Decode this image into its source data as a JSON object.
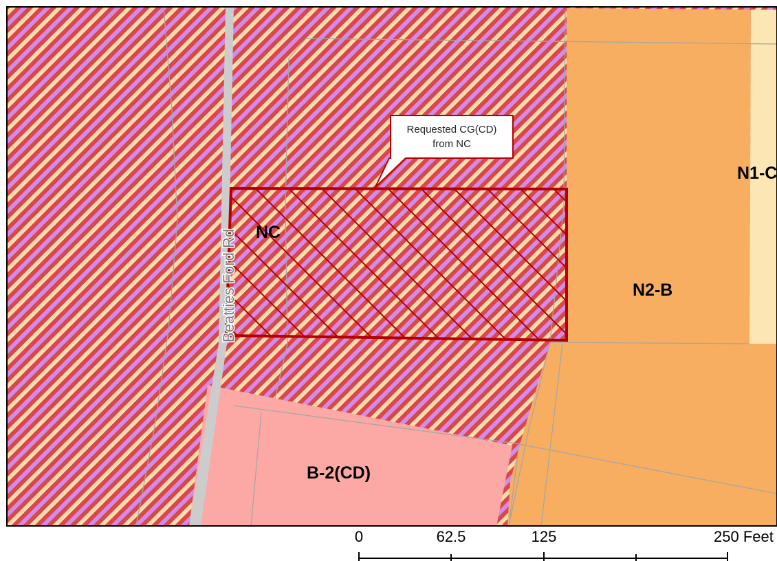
{
  "map": {
    "zones": [
      {
        "id": "nc",
        "label": "NC"
      },
      {
        "id": "n2b",
        "label": "N2-B"
      },
      {
        "id": "n1c",
        "label": "N1-C"
      },
      {
        "id": "b2cd",
        "label": "B-2(CD)"
      }
    ],
    "road_label": "Beatties Ford Rd",
    "callout": {
      "line1": "Requested CG(CD)",
      "line2": "from NC"
    },
    "colors": {
      "nc_stripe_red": "#d9474a",
      "nc_stripe_pink": "#d28ce8",
      "nc_stripe_cream": "#fddcab",
      "n2b_fill": "#f7ae61",
      "n1c_fill": "#fbe6b4",
      "b2cd_fill": "#fca9a6",
      "road_fill": "#cccccc",
      "request_outline": "#b40000"
    }
  },
  "scale_bar": {
    "labels": [
      "0",
      "62.5",
      "125",
      "250 Feet"
    ]
  }
}
